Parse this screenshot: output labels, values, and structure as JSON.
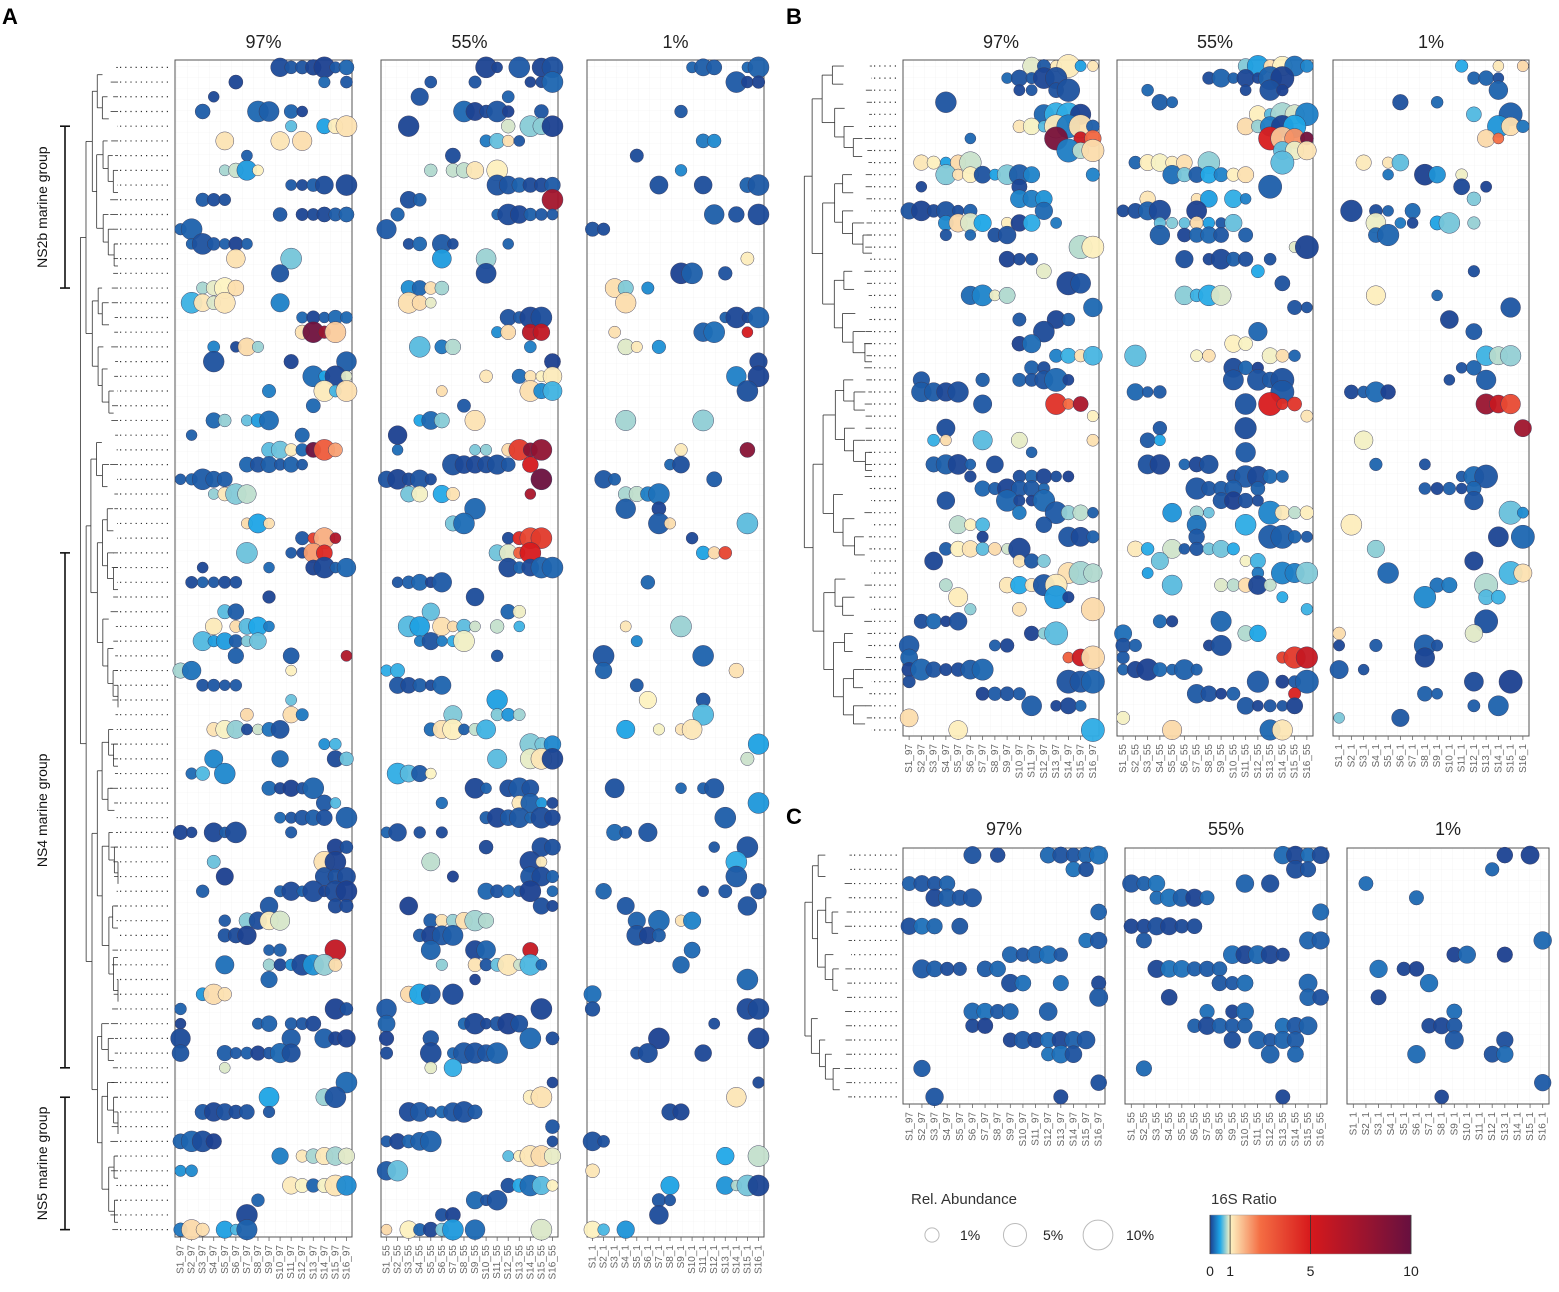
{
  "chart_data": [
    {
      "panel": "A",
      "type": "scatter",
      "facets": [
        "97%",
        "55%",
        "1%"
      ],
      "facet_suffixes": [
        "97",
        "55",
        "1"
      ],
      "samples": [
        "S1",
        "S2",
        "S3",
        "S4",
        "S5",
        "S6",
        "S7",
        "S8",
        "S9",
        "S10",
        "S11",
        "S12",
        "S13",
        "S14",
        "S15",
        "S16"
      ],
      "tick_labels": [
        [
          "S1_97",
          "S2_97",
          "S3_97",
          "S4_97",
          "S5_97",
          "S6_97",
          "S7_97",
          "S8_97",
          "S9_97",
          "S10_97",
          "S11_97",
          "S12_97",
          "S13_97",
          "S14_97",
          "S15_97",
          "S16_97"
        ],
        [
          "S1_55",
          "S2_55",
          "S3_55",
          "S4_55",
          "S5_55",
          "S6_55",
          "S7_55",
          "S8_55",
          "S9_55",
          "S10_55",
          "S11_55",
          "S12_55",
          "S13_55",
          "S14_55",
          "S15_55",
          "S16_55"
        ],
        [
          "S1_1",
          "S2_1",
          "S3_1",
          "S4_1",
          "S5_1",
          "S6_1",
          "S7_1",
          "S8_1",
          "S9_1",
          "S10_1",
          "S11_1",
          "S12_1",
          "S13_1",
          "S14_1",
          "S15_1",
          "S16_1"
        ]
      ],
      "n_otus": 80,
      "groups": [
        {
          "label": "NS2b marine group",
          "row_start": 4,
          "row_end": 15
        },
        {
          "label": "NS4 marine group",
          "row_start": 33,
          "row_end": 68
        },
        {
          "label": "NS5 marine group",
          "row_start": 70,
          "row_end": 79
        }
      ]
    },
    {
      "panel": "B",
      "type": "scatter",
      "facets": [
        "97%",
        "55%",
        "1%"
      ],
      "facet_suffixes": [
        "97",
        "55",
        "1"
      ],
      "samples": [
        "S1",
        "S2",
        "S3",
        "S4",
        "S5",
        "S6",
        "S7",
        "S8",
        "S9",
        "S10",
        "S11",
        "S12",
        "S13",
        "S14",
        "S15",
        "S16"
      ],
      "tick_labels": [
        [
          "S1_97",
          "S2_97",
          "S3_97",
          "S4_97",
          "S5_97",
          "S6_97",
          "S7_97",
          "S8_97",
          "S9_97",
          "S10_97",
          "S11_97",
          "S12_97",
          "S13_97",
          "S14_97",
          "S15_97",
          "S16_97"
        ],
        [
          "S1_55",
          "S2_55",
          "S3_55",
          "S4_55",
          "S5_55",
          "S6_55",
          "S7_55",
          "S8_55",
          "S9_55",
          "S10_55",
          "S11_55",
          "S12_55",
          "S13_55",
          "S14_55",
          "S15_55",
          "S16_55"
        ],
        [
          "S1_1",
          "S2_1",
          "S3_1",
          "S4_1",
          "S5_1",
          "S6_1",
          "S7_1",
          "S8_1",
          "S9_1",
          "S10_1",
          "S11_1",
          "S12_1",
          "S13_1",
          "S14_1",
          "S15_1",
          "S16_1"
        ]
      ],
      "n_otus": 56,
      "groups": []
    },
    {
      "panel": "C",
      "type": "scatter",
      "facets": [
        "97%",
        "55%",
        "1%"
      ],
      "facet_suffixes": [
        "97",
        "55",
        "1"
      ],
      "samples": [
        "S1",
        "S2",
        "S3",
        "S4",
        "S5",
        "S6",
        "S7",
        "S8",
        "S9",
        "S10",
        "S11",
        "S12",
        "S13",
        "S14",
        "S15",
        "S16"
      ],
      "tick_labels": [
        [
          "S1_97",
          "S2_97",
          "S3_97",
          "S4_97",
          "S5_97",
          "S6_97",
          "S7_97",
          "S8_97",
          "S9_97",
          "S10_97",
          "S11_97",
          "S12_97",
          "S13_97",
          "S14_97",
          "S15_97",
          "S16_97"
        ],
        [
          "S1_55",
          "S2_55",
          "S3_55",
          "S4_55",
          "S5_55",
          "S6_55",
          "S7_55",
          "S8_55",
          "S9_55",
          "S10_55",
          "S11_55",
          "S12_55",
          "S13_55",
          "S14_55",
          "S15_55",
          "S16_55"
        ],
        [
          "S1_1",
          "S2_1",
          "S3_1",
          "S4_1",
          "S5_1",
          "S6_1",
          "S7_1",
          "S8_1",
          "S9_1",
          "S10_1",
          "S11_1",
          "S12_1",
          "S13_1",
          "S14_1",
          "S15_1",
          "S16_1"
        ]
      ],
      "n_otus": 18,
      "groups": []
    }
  ],
  "legend": {
    "size": {
      "title": "Rel. Abundance",
      "values": [
        1,
        5,
        10
      ],
      "labels": [
        "1%",
        "5%",
        "10%"
      ]
    },
    "color": {
      "title": "16S Ratio",
      "min": 0,
      "max": 10,
      "ticks": [
        0,
        1,
        5,
        10
      ],
      "tick_labels": [
        "0",
        "1",
        "5",
        "10"
      ],
      "stops": [
        {
          "value": 0,
          "color": "#1b3f8f"
        },
        {
          "value": 0.5,
          "color": "#1ea7e8"
        },
        {
          "value": 1,
          "color": "#fdf3c2"
        },
        {
          "value": 2.5,
          "color": "#f46d43"
        },
        {
          "value": 5,
          "color": "#d7191c"
        },
        {
          "value": 10,
          "color": "#67103f"
        }
      ]
    }
  }
}
